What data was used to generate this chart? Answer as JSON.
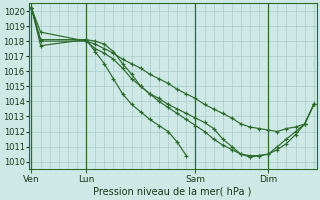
{
  "bg_color": "#cde8e5",
  "grid_color": "#a8ccca",
  "line_color": "#2d6a2d",
  "ylabel": "Pression niveau de la mer( hPa )",
  "ylim": [
    1009.5,
    1020.5
  ],
  "yticks": [
    1010,
    1011,
    1012,
    1013,
    1014,
    1015,
    1016,
    1017,
    1018,
    1019,
    1020
  ],
  "xtick_labels": [
    "Ven",
    "Lun",
    "Sam",
    "Dim"
  ],
  "xtick_positions": [
    0,
    6,
    18,
    26
  ],
  "n_points": 32,
  "vline_positions": [
    6,
    18,
    26
  ],
  "lines": [
    {
      "x": [
        0,
        1,
        6,
        7,
        8,
        9,
        10,
        11,
        12,
        13,
        14,
        15,
        16,
        17,
        18,
        19,
        20,
        21,
        22,
        23,
        24,
        25,
        26,
        27,
        28,
        29,
        30,
        31
      ],
      "y": [
        1020.2,
        1018.6,
        1018.0,
        1017.5,
        1017.2,
        1016.8,
        1016.2,
        1015.5,
        1015.0,
        1014.5,
        1014.0,
        1013.6,
        1013.2,
        1012.8,
        1012.4,
        1012.0,
        1011.5,
        1011.1,
        1010.8,
        1010.5,
        1010.4,
        1010.4,
        1010.5,
        1010.8,
        1011.2,
        1011.8,
        1012.5,
        1013.8
      ]
    },
    {
      "x": [
        0,
        1,
        6,
        7,
        8,
        9,
        10,
        11,
        12,
        13,
        14,
        15,
        16,
        17,
        18,
        19,
        20,
        21,
        22,
        23,
        24,
        25,
        26,
        27,
        28,
        29,
        30,
        31
      ],
      "y": [
        1020.2,
        1017.7,
        1018.1,
        1018.0,
        1017.8,
        1017.3,
        1016.5,
        1015.8,
        1015.0,
        1014.5,
        1014.2,
        1013.8,
        1013.5,
        1013.2,
        1012.9,
        1012.6,
        1012.2,
        1011.5,
        1011.0,
        1010.5,
        1010.3,
        1010.4,
        1010.5,
        1011.0,
        1011.5,
        1012.0,
        1012.5,
        1013.8
      ]
    },
    {
      "x": [
        0,
        1,
        6,
        7,
        8,
        9,
        10,
        11,
        12,
        13,
        14,
        15,
        16,
        17
      ],
      "y": [
        1020.2,
        1018.1,
        1018.1,
        1017.3,
        1016.5,
        1015.5,
        1014.5,
        1013.8,
        1013.3,
        1012.8,
        1012.4,
        1012.0,
        1011.3,
        1010.4
      ]
    },
    {
      "x": [
        0,
        1,
        6,
        7,
        8,
        9,
        10,
        11,
        12,
        13,
        14,
        15,
        16,
        17,
        18,
        19,
        20,
        21,
        22,
        23,
        24,
        25,
        26,
        27,
        28,
        29,
        30,
        31
      ],
      "y": [
        1020.2,
        1018.0,
        1018.0,
        1017.8,
        1017.5,
        1017.2,
        1016.8,
        1016.5,
        1016.2,
        1015.8,
        1015.5,
        1015.2,
        1014.8,
        1014.5,
        1014.2,
        1013.8,
        1013.5,
        1013.2,
        1012.9,
        1012.5,
        1012.3,
        1012.2,
        1012.1,
        1012.0,
        1012.2,
        1012.3,
        1012.5,
        1013.8
      ]
    }
  ]
}
